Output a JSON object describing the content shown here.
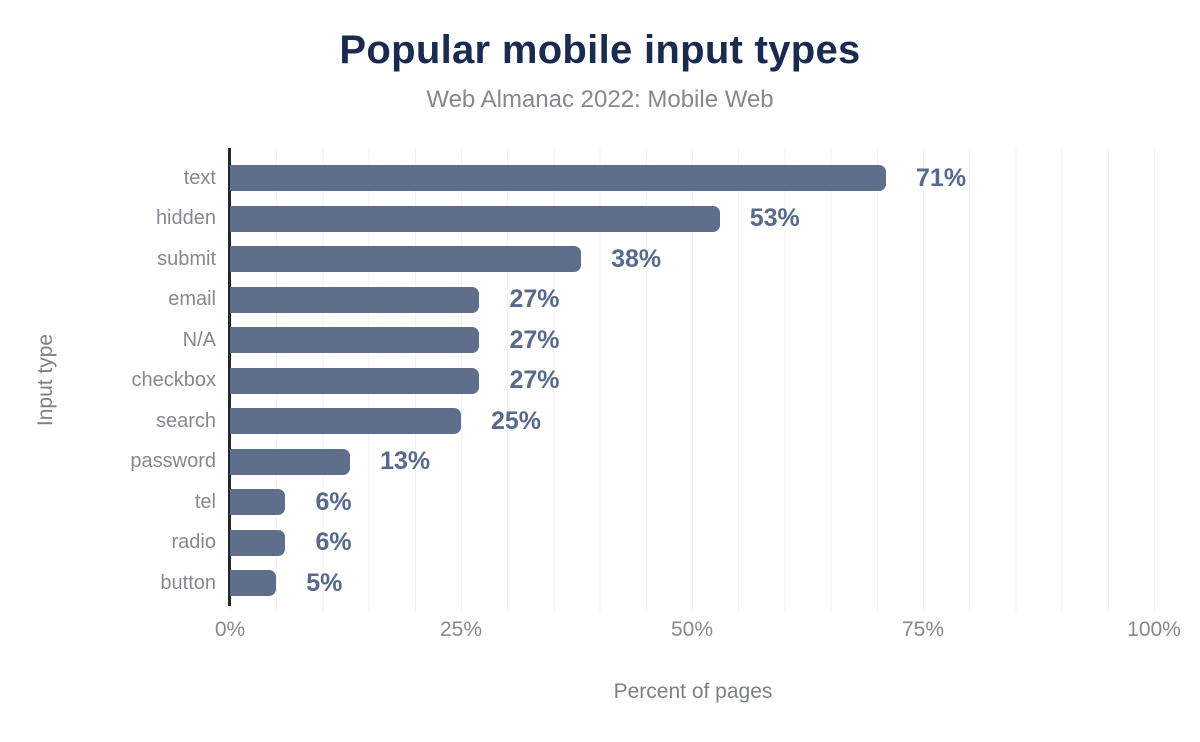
{
  "header": {
    "title": "Popular mobile input types",
    "subtitle": "Web Almanac 2022: Mobile Web"
  },
  "chart_data": {
    "type": "bar",
    "orientation": "horizontal",
    "title": "Popular mobile input types",
    "subtitle": "Web Almanac 2022: Mobile Web",
    "categories": [
      "text",
      "hidden",
      "submit",
      "email",
      "N/A",
      "checkbox",
      "search",
      "password",
      "tel",
      "radio",
      "button"
    ],
    "values": [
      71,
      53,
      38,
      27,
      27,
      27,
      25,
      13,
      6,
      6,
      5
    ],
    "value_labels": [
      "71%",
      "53%",
      "38%",
      "27%",
      "27%",
      "27%",
      "25%",
      "13%",
      "6%",
      "6%",
      "5%"
    ],
    "xlabel": "Percent of pages",
    "ylabel": "Input type",
    "xlim": [
      0,
      100
    ],
    "x_ticks": [
      {
        "value": 0,
        "label": "0%"
      },
      {
        "value": 25,
        "label": "25%"
      },
      {
        "value": 50,
        "label": "50%"
      },
      {
        "value": 75,
        "label": "75%"
      },
      {
        "value": 100,
        "label": "100%"
      }
    ],
    "grid": {
      "vertical_minor_step_percent": 5,
      "horizontal": false
    },
    "legend": "none",
    "colors": {
      "bar": "#5f6e8a",
      "value_label": "#57698f",
      "title": "#1a2b50",
      "muted_text": "#85888e",
      "axis_title_text": "#7d8085",
      "gridline": "#f2f2f4",
      "axis_line": "#23262e",
      "background": "#ffffff"
    }
  }
}
